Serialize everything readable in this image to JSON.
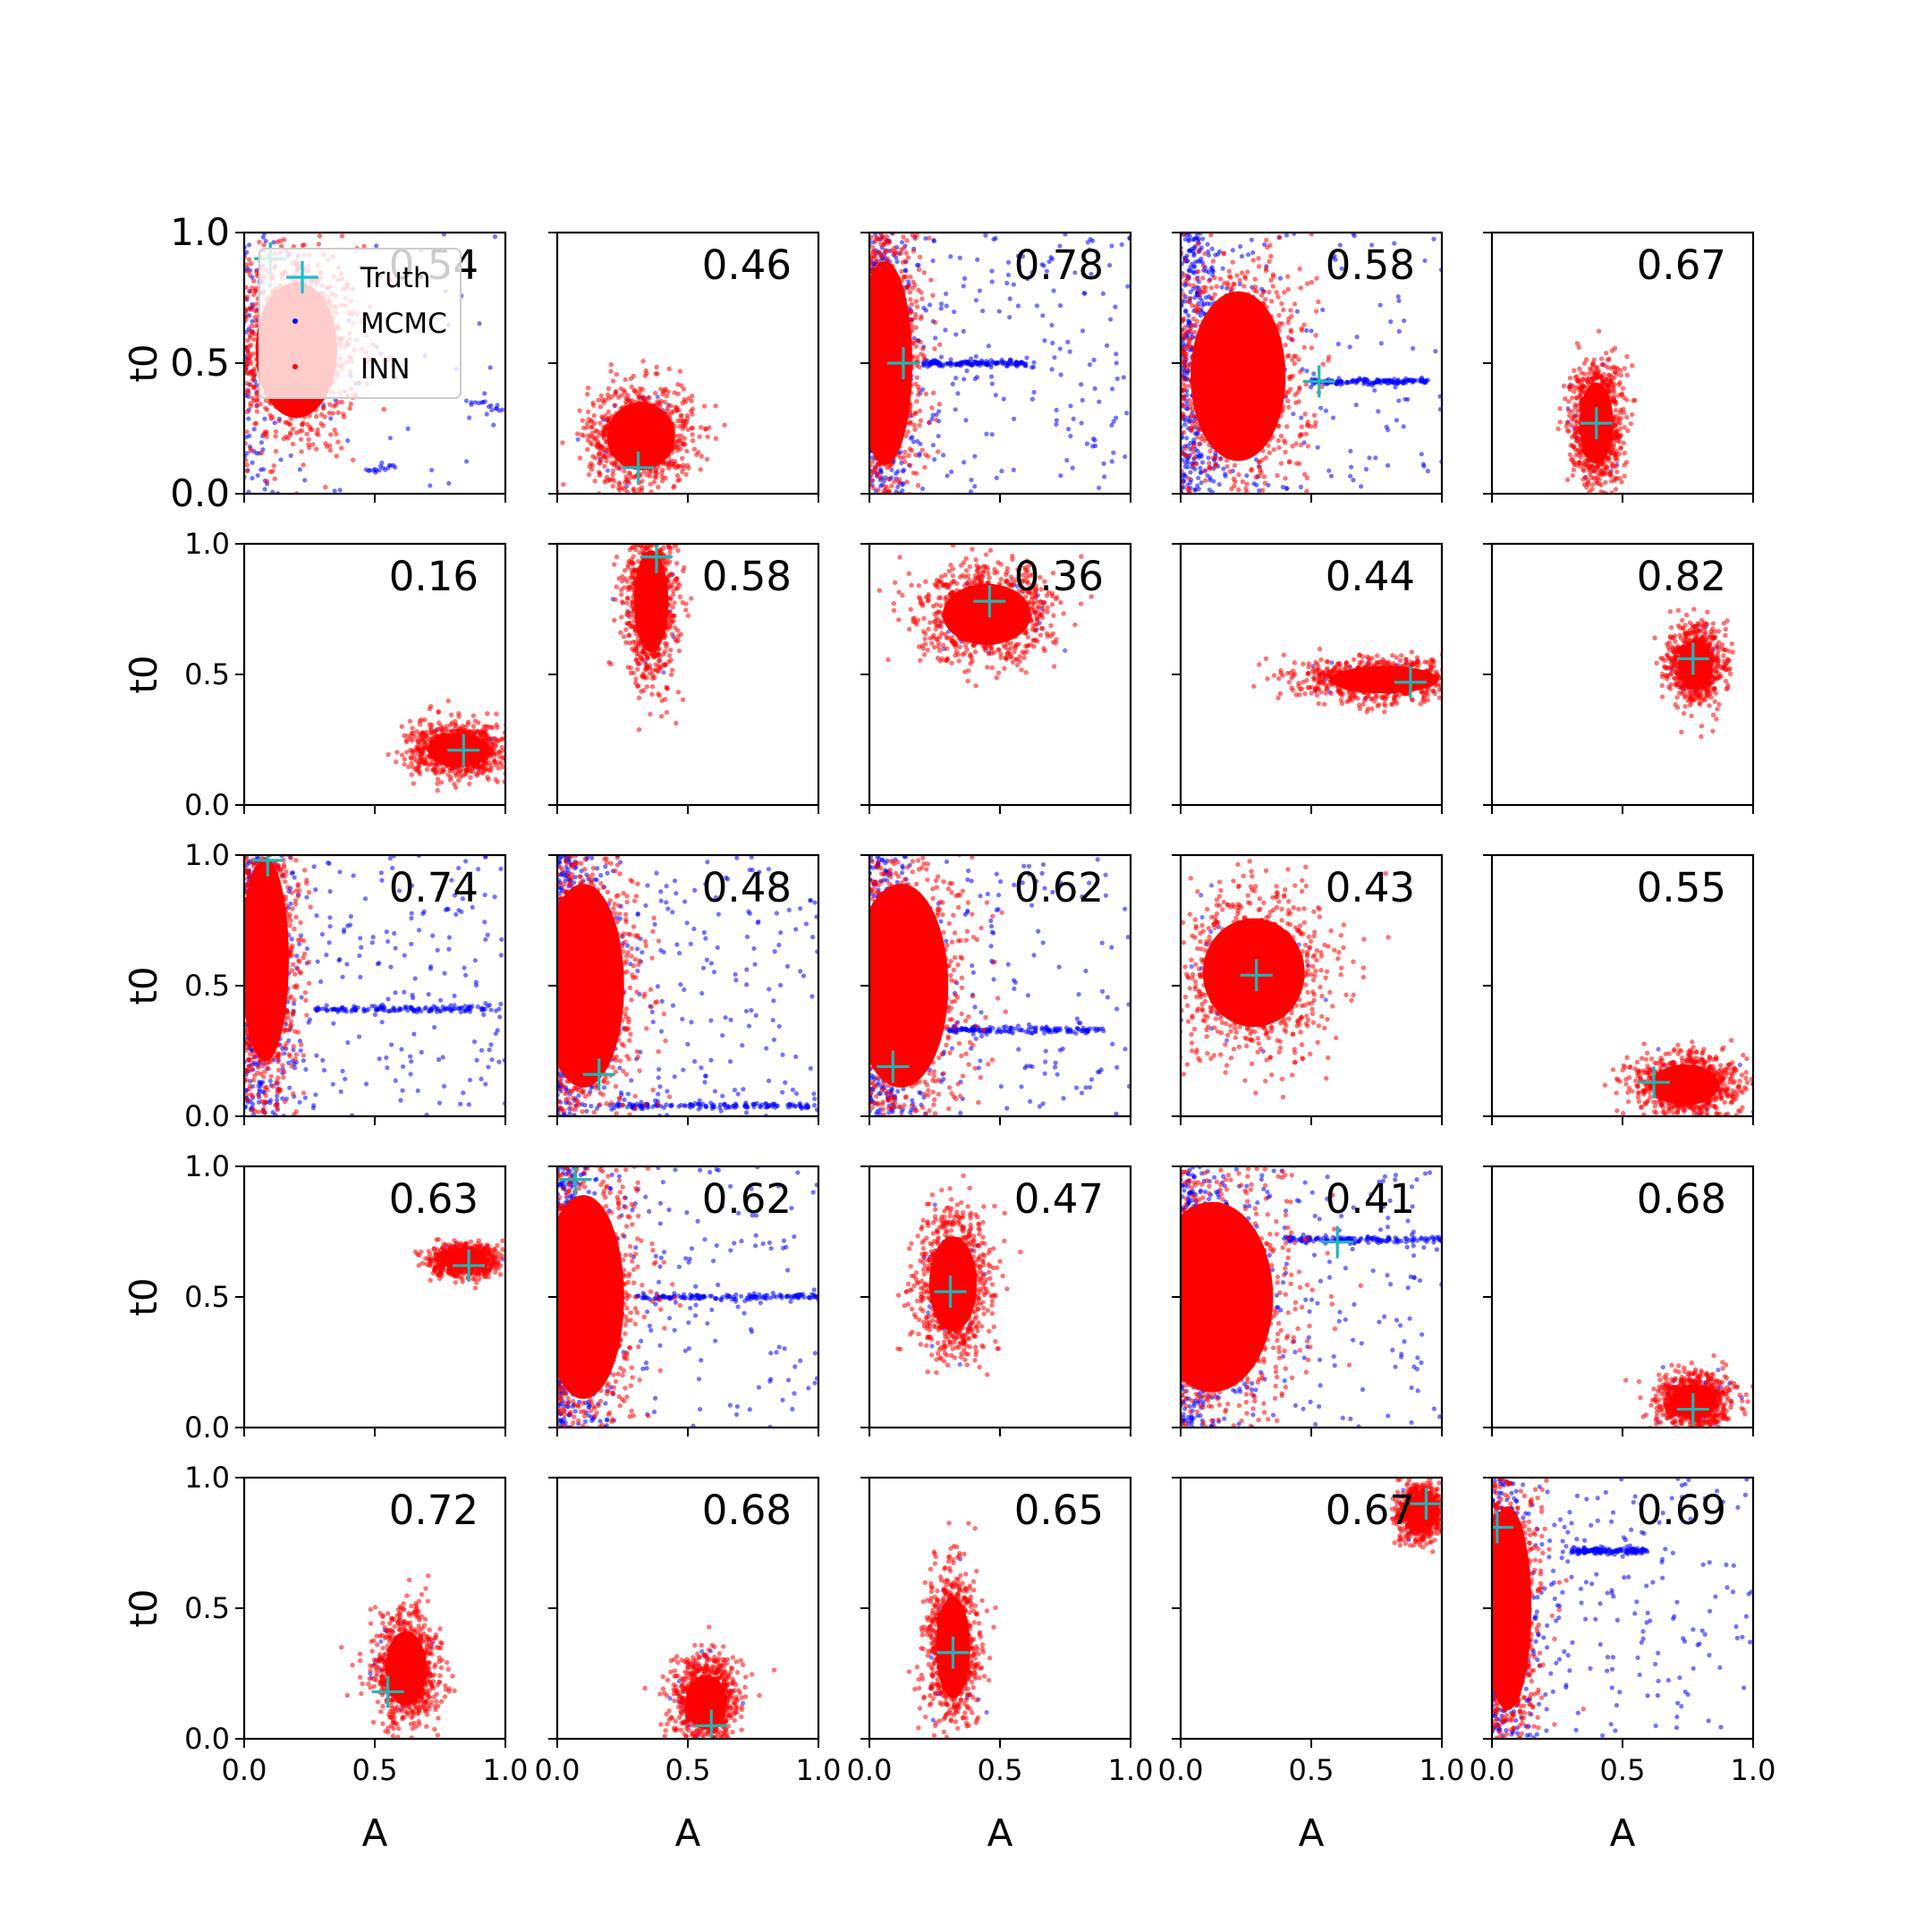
{
  "chart_data": {
    "type": "scatter",
    "layout": "5x5 grid of panels",
    "xlabel": "A",
    "ylabel": "t0",
    "xlim": [
      0,
      1
    ],
    "ylim": [
      0,
      1
    ],
    "xticks": [
      "0.0",
      "0.5",
      "1.0"
    ],
    "yticks": [
      "0.0",
      "0.5",
      "1.0"
    ],
    "legend": {
      "location": "top-left of first panel",
      "entries": [
        {
          "label": "Truth",
          "marker": "plus",
          "color": "#17becf"
        },
        {
          "label": "MCMC",
          "marker": "dot",
          "color": "#0000ff"
        },
        {
          "label": "INN",
          "marker": "dot",
          "color": "#ff0000"
        }
      ]
    },
    "series_colors": {
      "Truth": "#22b5b5",
      "MCMC": "#0000ff",
      "INN": "#ff0000"
    },
    "panels": [
      {
        "corr": "0.54",
        "truth": [
          0.1,
          0.9
        ],
        "inn": {
          "shape": "wide",
          "cx": 0.2,
          "cy": 0.55,
          "sx": 0.12,
          "sy": 0.2,
          "amin": 0.0
        },
        "mcmc": {
          "style": "sparse",
          "extras": [
            [
              0.55,
              0.1
            ],
            [
              0.5,
              0.09
            ],
            [
              0.96,
              0.33
            ],
            [
              0.9,
              0.35
            ]
          ]
        }
      },
      {
        "corr": "0.46",
        "truth": [
          0.31,
          0.1
        ],
        "inn": {
          "shape": "blob",
          "cx": 0.32,
          "cy": 0.22,
          "sx": 0.1,
          "sy": 0.1
        },
        "mcmc": {
          "style": "hidden"
        }
      },
      {
        "corr": "0.78",
        "truth": [
          0.13,
          0.5
        ],
        "inn": {
          "shape": "edge",
          "cx": 0.06,
          "cy": 0.5,
          "sx": 0.08,
          "sy": 0.3,
          "amin": 0.0
        },
        "mcmc": {
          "style": "wide",
          "line_y": 0.5,
          "line_x": [
            0.2,
            0.6
          ]
        }
      },
      {
        "corr": "0.58",
        "truth": [
          0.53,
          0.43
        ],
        "inn": {
          "shape": "wide",
          "cx": 0.22,
          "cy": 0.45,
          "sx": 0.14,
          "sy": 0.25,
          "amin": 0.0
        },
        "mcmc": {
          "style": "wide",
          "line_y": 0.43,
          "line_x": [
            0.5,
            0.95
          ]
        }
      },
      {
        "corr": "0.67",
        "truth": [
          0.4,
          0.27
        ],
        "inn": {
          "shape": "blob",
          "cx": 0.4,
          "cy": 0.27,
          "sx": 0.05,
          "sy": 0.12
        },
        "mcmc": {
          "style": "hidden"
        }
      },
      {
        "corr": "0.16",
        "truth": [
          0.84,
          0.21
        ],
        "inn": {
          "shape": "blob",
          "cx": 0.82,
          "cy": 0.21,
          "sx": 0.09,
          "sy": 0.05
        },
        "mcmc": {
          "style": "hidden"
        }
      },
      {
        "corr": "0.58",
        "truth": [
          0.38,
          0.95
        ],
        "inn": {
          "shape": "blob",
          "cx": 0.36,
          "cy": 0.78,
          "sx": 0.05,
          "sy": 0.15
        },
        "mcmc": {
          "style": "hidden"
        }
      },
      {
        "corr": "0.36",
        "truth": [
          0.46,
          0.78
        ],
        "inn": {
          "shape": "blob",
          "cx": 0.45,
          "cy": 0.73,
          "sx": 0.13,
          "sy": 0.09
        },
        "mcmc": {
          "style": "hidden"
        }
      },
      {
        "corr": "0.44",
        "truth": [
          0.88,
          0.47
        ],
        "inn": {
          "shape": "blob",
          "cx": 0.78,
          "cy": 0.48,
          "sx": 0.16,
          "sy": 0.04
        },
        "mcmc": {
          "style": "hidden"
        }
      },
      {
        "corr": "0.82",
        "truth": [
          0.77,
          0.56
        ],
        "inn": {
          "shape": "blob",
          "cx": 0.78,
          "cy": 0.54,
          "sx": 0.05,
          "sy": 0.07
        },
        "mcmc": {
          "style": "hidden"
        }
      },
      {
        "corr": "0.74",
        "truth": [
          0.09,
          0.98
        ],
        "inn": {
          "shape": "edge",
          "cx": 0.08,
          "cy": 0.6,
          "sx": 0.07,
          "sy": 0.3,
          "amin": 0.0
        },
        "mcmc": {
          "style": "wide",
          "line_y": 0.41,
          "line_x": [
            0.27,
            0.98
          ]
        }
      },
      {
        "corr": "0.48",
        "truth": [
          0.16,
          0.16
        ],
        "inn": {
          "shape": "edge",
          "cx": 0.1,
          "cy": 0.5,
          "sx": 0.12,
          "sy": 0.3,
          "amin": 0.0
        },
        "mcmc": {
          "style": "wide",
          "line_y": 0.04,
          "line_x": [
            0.2,
            1.0
          ]
        }
      },
      {
        "corr": "0.62",
        "truth": [
          0.09,
          0.19
        ],
        "inn": {
          "shape": "edge",
          "cx": 0.12,
          "cy": 0.5,
          "sx": 0.14,
          "sy": 0.3,
          "amin": 0.0
        },
        "mcmc": {
          "style": "wide",
          "line_y": 0.33,
          "line_x": [
            0.3,
            0.9
          ]
        }
      },
      {
        "corr": "0.43",
        "truth": [
          0.29,
          0.54
        ],
        "inn": {
          "shape": "blob",
          "cx": 0.28,
          "cy": 0.55,
          "sx": 0.15,
          "sy": 0.16
        },
        "mcmc": {
          "style": "hidden"
        }
      },
      {
        "corr": "0.55",
        "truth": [
          0.62,
          0.13
        ],
        "inn": {
          "shape": "blob",
          "cx": 0.74,
          "cy": 0.12,
          "sx": 0.1,
          "sy": 0.06
        },
        "mcmc": {
          "style": "hidden"
        }
      },
      {
        "corr": "0.63",
        "truth": [
          0.86,
          0.62
        ],
        "inn": {
          "shape": "blob",
          "cx": 0.84,
          "cy": 0.64,
          "sx": 0.06,
          "sy": 0.03
        },
        "mcmc": {
          "style": "hidden"
        }
      },
      {
        "corr": "0.62",
        "truth": [
          0.07,
          0.95
        ],
        "inn": {
          "shape": "edge",
          "cx": 0.1,
          "cy": 0.5,
          "sx": 0.12,
          "sy": 0.3,
          "amin": 0.0
        },
        "mcmc": {
          "style": "wide",
          "line_y": 0.5,
          "line_x": [
            0.3,
            1.0
          ]
        }
      },
      {
        "corr": "0.47",
        "truth": [
          0.31,
          0.52
        ],
        "inn": {
          "shape": "blob",
          "cx": 0.32,
          "cy": 0.55,
          "sx": 0.07,
          "sy": 0.14
        },
        "mcmc": {
          "style": "hidden"
        }
      },
      {
        "corr": "0.41",
        "truth": [
          0.6,
          0.71
        ],
        "inn": {
          "shape": "edge",
          "cx": 0.12,
          "cy": 0.5,
          "sx": 0.18,
          "sy": 0.28,
          "amin": 0.0
        },
        "mcmc": {
          "style": "wide",
          "line_y": 0.72,
          "line_x": [
            0.4,
            1.0
          ]
        }
      },
      {
        "corr": "0.68",
        "truth": [
          0.77,
          0.07
        ],
        "inn": {
          "shape": "blob",
          "cx": 0.77,
          "cy": 0.1,
          "sx": 0.07,
          "sy": 0.05
        },
        "mcmc": {
          "style": "hidden"
        }
      },
      {
        "corr": "0.72",
        "truth": [
          0.55,
          0.18
        ],
        "inn": {
          "shape": "blob",
          "cx": 0.62,
          "cy": 0.27,
          "sx": 0.06,
          "sy": 0.11
        },
        "mcmc": {
          "style": "hidden"
        }
      },
      {
        "corr": "0.68",
        "truth": [
          0.59,
          0.05
        ],
        "inn": {
          "shape": "blob",
          "cx": 0.57,
          "cy": 0.14,
          "sx": 0.06,
          "sy": 0.08
        },
        "mcmc": {
          "style": "hidden"
        }
      },
      {
        "corr": "0.65",
        "truth": [
          0.32,
          0.33
        ],
        "inn": {
          "shape": "blob",
          "cx": 0.32,
          "cy": 0.35,
          "sx": 0.05,
          "sy": 0.15
        },
        "mcmc": {
          "style": "hidden"
        }
      },
      {
        "corr": "0.67",
        "truth": [
          0.94,
          0.9
        ],
        "inn": {
          "shape": "blob",
          "cx": 0.92,
          "cy": 0.87,
          "sx": 0.04,
          "sy": 0.05
        },
        "mcmc": {
          "style": "hidden"
        }
      },
      {
        "corr": "0.69",
        "truth": [
          0.02,
          0.81
        ],
        "inn": {
          "shape": "edge",
          "cx": 0.06,
          "cy": 0.5,
          "sx": 0.07,
          "sy": 0.3,
          "amin": 0.0
        },
        "mcmc": {
          "style": "wide",
          "line_y": 0.72,
          "line_x": [
            0.3,
            0.6
          ]
        }
      }
    ]
  }
}
